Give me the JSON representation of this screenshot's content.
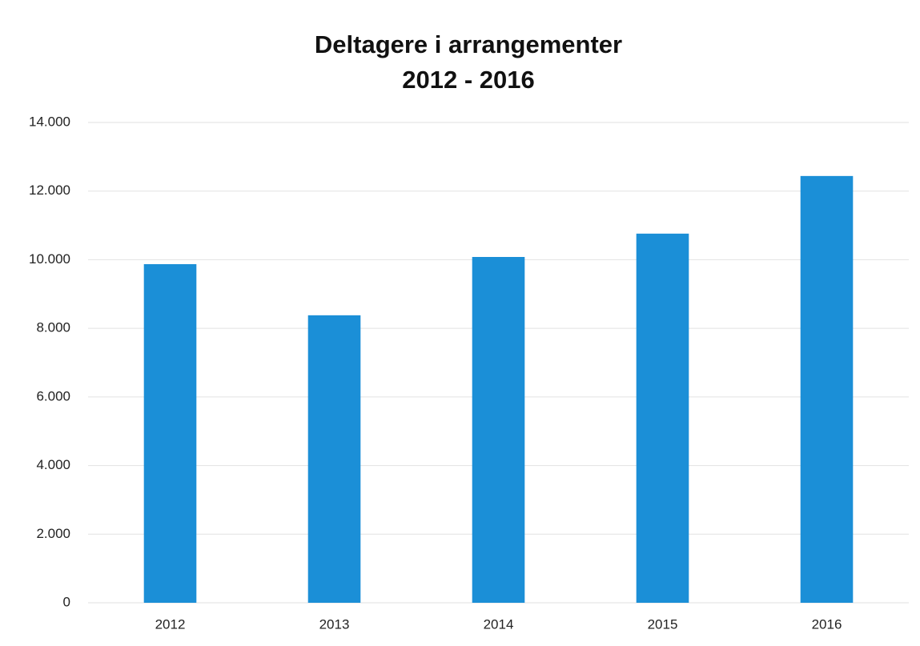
{
  "chart_data": {
    "type": "bar",
    "title": "Deltagere i arrangementer",
    "subtitle": "2012 - 2016",
    "categories": [
      "2012",
      "2013",
      "2014",
      "2015",
      "2016"
    ],
    "values": [
      9870,
      8380,
      10080,
      10760,
      12440
    ],
    "color": "#1b8fd7",
    "ylim": [
      0,
      14000
    ],
    "yticks": [
      0,
      {
        "value": 2000,
        "label": "2.000"
      },
      {
        "value": 4000,
        "label": "4.000"
      },
      {
        "value": 6000,
        "label": "6.000"
      },
      {
        "value": 8000,
        "label": "8.000"
      },
      {
        "value": 10000,
        "label": "10.000"
      },
      {
        "value": 12000,
        "label": "12.000"
      },
      {
        "value": 14000,
        "label": "14.000"
      }
    ],
    "grid": true
  }
}
